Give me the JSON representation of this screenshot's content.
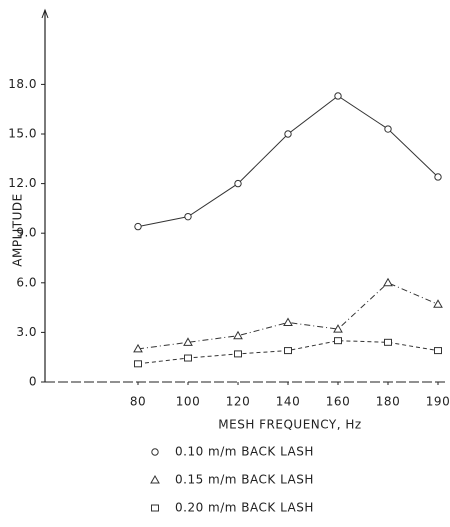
{
  "chart_data": {
    "type": "line",
    "x_label": "MESH FREQUENCY, Hz",
    "y_label": "AMPLITUDE",
    "categories": [
      "80",
      "100",
      "120",
      "140",
      "160",
      "180",
      "190"
    ],
    "ylim": [
      0,
      22.5
    ],
    "yticks": [
      0,
      {
        "value": 3,
        "label": "3.0"
      },
      {
        "value": 6,
        "label": "6.0"
      },
      {
        "value": 9,
        "label": "9.0"
      },
      {
        "value": 12,
        "label": "12.0"
      },
      {
        "value": 15,
        "label": "15.0"
      },
      {
        "value": 18,
        "label": "18.0"
      }
    ],
    "series": [
      {
        "name": "0.10 m/m  BACK LASH",
        "color": "#333333",
        "marker": "circle",
        "values": [
          9.4,
          10.0,
          12.0,
          15.0,
          17.3,
          15.3,
          12.4
        ]
      },
      {
        "name": "0.15 m/m  BACK LASH",
        "color": "#333333",
        "marker": "triangle",
        "values": [
          2.0,
          2.4,
          2.8,
          3.6,
          3.2,
          6.0,
          4.7
        ]
      },
      {
        "name": "0.20 m/m  BACK LASH",
        "color": "#333333",
        "marker": "square",
        "values": [
          1.1,
          1.45,
          1.7,
          1.9,
          2.5,
          2.4,
          1.9
        ]
      }
    ]
  }
}
